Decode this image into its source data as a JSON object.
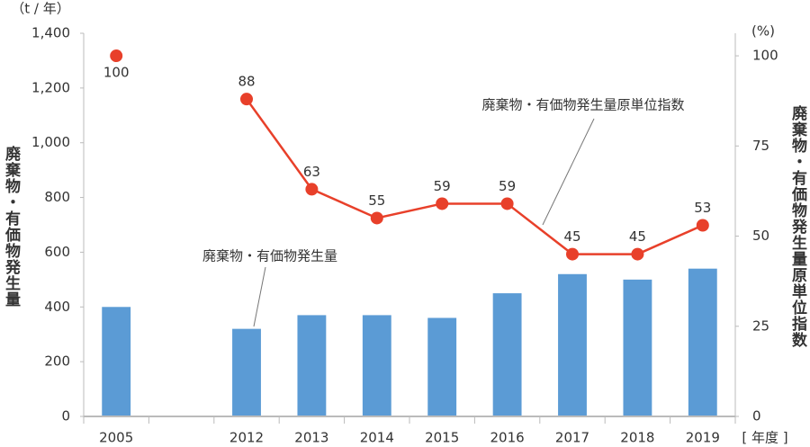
{
  "chart_data": {
    "type": "combo",
    "y_label": "廃棄物・有価物発生量",
    "y2_label": "廃棄物・有価物発生量原単位指数",
    "y_unit": "（t / 年）",
    "y2_unit": "(%)",
    "x_unit": "[ 年度 ]",
    "categories": [
      "2005",
      null,
      "2012",
      "2013",
      "2014",
      "2015",
      "2016",
      "2017",
      "2018",
      "2019"
    ],
    "series": [
      {
        "name": "廃棄物・有価物発生量",
        "type": "bar",
        "color": "#5b9bd5",
        "values": [
          400,
          null,
          320,
          370,
          370,
          360,
          450,
          520,
          500,
          540
        ]
      },
      {
        "name": "廃棄物・有価物発生量原単位指数",
        "type": "line",
        "axis": "y2",
        "color": "#e8402a",
        "values": [
          100,
          null,
          88,
          63,
          55,
          59,
          59,
          45,
          45,
          53
        ]
      }
    ],
    "ylim": [
      0,
      1400
    ],
    "yticks": [
      0,
      200,
      400,
      600,
      800,
      {
        "value": 1000,
        "label": "1,000"
      },
      {
        "value": 1200,
        "label": "1,200"
      },
      {
        "value": 1400,
        "label": "1,400"
      }
    ],
    "y2lim": [
      0,
      106.25
    ],
    "y2ticks": [
      0,
      25,
      50,
      75,
      100
    ]
  }
}
